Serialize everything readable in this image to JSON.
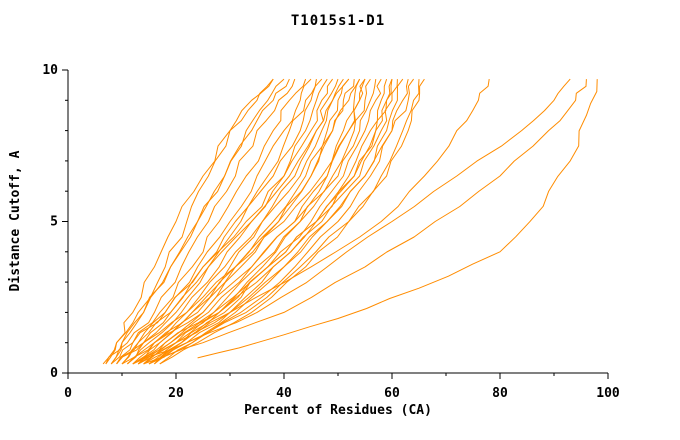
{
  "chart_data": {
    "type": "line",
    "title": "T1015s1-D1",
    "xlabel": "Percent of Residues (CA)",
    "ylabel": "Distance Cutoff, A",
    "xlim": [
      0,
      100
    ],
    "ylim": [
      0,
      10
    ],
    "x_ticks": [
      0,
      20,
      40,
      60,
      80,
      100
    ],
    "y_ticks": [
      0,
      5,
      10
    ],
    "x_minor_step": 10,
    "y_minor_step": 1,
    "grid": false,
    "legend": "none",
    "line_color": "#ff8c00",
    "y_levels": [
      0.3,
      1,
      2,
      3.5,
      5,
      6.5,
      8,
      9,
      9.7
    ],
    "series": [
      {
        "x": [
          6.5,
          9,
          13,
          18,
          22,
          26,
          30,
          34,
          38
        ]
      },
      {
        "x": [
          7,
          10,
          14,
          19,
          24,
          29,
          33,
          37,
          40
        ]
      },
      {
        "x": [
          8,
          11,
          16,
          21,
          26,
          31,
          35,
          39,
          42
        ]
      },
      {
        "x": [
          8,
          12,
          17,
          23,
          28,
          33,
          38,
          41,
          44
        ]
      },
      {
        "x": [
          9,
          12,
          18,
          24,
          30,
          35,
          40,
          43,
          45
        ]
      },
      {
        "x": [
          9,
          13,
          19,
          25,
          31,
          37,
          41,
          44,
          46
        ]
      },
      {
        "x": [
          10,
          14,
          20,
          26,
          32,
          38,
          43,
          45,
          47
        ]
      },
      {
        "x": [
          10,
          13,
          18,
          25,
          33,
          40,
          44,
          46,
          48
        ]
      },
      {
        "x": [
          11,
          15,
          21,
          28,
          34,
          40,
          45,
          47,
          49
        ]
      },
      {
        "x": [
          11,
          16,
          23,
          30,
          36,
          42,
          46,
          48,
          50
        ]
      },
      {
        "x": [
          12,
          16,
          22,
          29,
          36,
          43,
          47,
          49,
          51
        ]
      },
      {
        "x": [
          12,
          17,
          24,
          31,
          38,
          44,
          48,
          50,
          52
        ]
      },
      {
        "x": [
          13,
          18,
          25,
          32,
          39,
          45,
          49,
          51,
          53
        ]
      },
      {
        "x": [
          13,
          17,
          23,
          31,
          40,
          47,
          51,
          53,
          54
        ]
      },
      {
        "x": [
          14,
          19,
          26,
          34,
          42,
          48,
          52,
          54,
          55
        ]
      },
      {
        "x": [
          14,
          20,
          28,
          36,
          43,
          49,
          53,
          55,
          56
        ]
      },
      {
        "x": [
          15,
          20,
          27,
          35,
          43,
          50,
          54,
          56,
          57
        ]
      },
      {
        "x": [
          15,
          21,
          29,
          37,
          45,
          51,
          55,
          57,
          58
        ]
      },
      {
        "x": [
          16,
          22,
          30,
          38,
          46,
          52,
          56,
          58,
          59
        ]
      },
      {
        "x": [
          16,
          21,
          28,
          37,
          46,
          53,
          57,
          59,
          60
        ]
      },
      {
        "x": [
          12,
          18,
          27,
          37,
          46,
          53,
          57,
          59,
          60
        ]
      },
      {
        "x": [
          10,
          16,
          25,
          34,
          42,
          48,
          52,
          54,
          55
        ]
      },
      {
        "x": [
          14,
          21,
          30,
          40,
          48,
          55,
          59,
          61,
          62
        ]
      },
      {
        "x": [
          15,
          22,
          32,
          42,
          50,
          56,
          60,
          62,
          63
        ]
      },
      {
        "x": [
          16,
          23,
          33,
          43,
          52,
          58,
          62,
          64,
          65
        ]
      },
      {
        "x": [
          17,
          24,
          34,
          44,
          52,
          59,
          63,
          65,
          66
        ]
      },
      {
        "x": [
          13,
          20,
          30,
          45,
          58,
          66,
          72,
          76,
          78
        ]
      },
      {
        "x": [
          12,
          22,
          35,
          48,
          60,
          72,
          84,
          90,
          93
        ]
      },
      {
        "x": [
          14,
          25,
          40,
          55,
          68,
          80,
          89,
          94,
          96
        ]
      },
      {
        "x": [
          24,
          35,
          50,
          65,
          80,
          88,
          93,
          96,
          98
        ],
        "y": [
          0.5,
          1,
          1.8,
          2.8,
          4,
          5.5,
          7,
          8.5,
          9.7
        ]
      },
      {
        "x": [
          7,
          9,
          12,
          16,
          20,
          25,
          30,
          35,
          38
        ]
      },
      {
        "x": [
          8,
          10,
          14,
          19,
          24,
          29,
          34,
          38,
          41
        ]
      },
      {
        "x": [
          11,
          14,
          19,
          26,
          34,
          41,
          46,
          49,
          52
        ]
      },
      {
        "x": [
          13,
          19,
          28,
          38,
          47,
          54,
          58,
          60,
          61
        ]
      },
      {
        "x": [
          9,
          14,
          22,
          31,
          39,
          45,
          49,
          52,
          54
        ]
      },
      {
        "x": [
          17,
          23,
          31,
          40,
          48,
          55,
          60,
          63,
          64
        ]
      }
    ]
  }
}
